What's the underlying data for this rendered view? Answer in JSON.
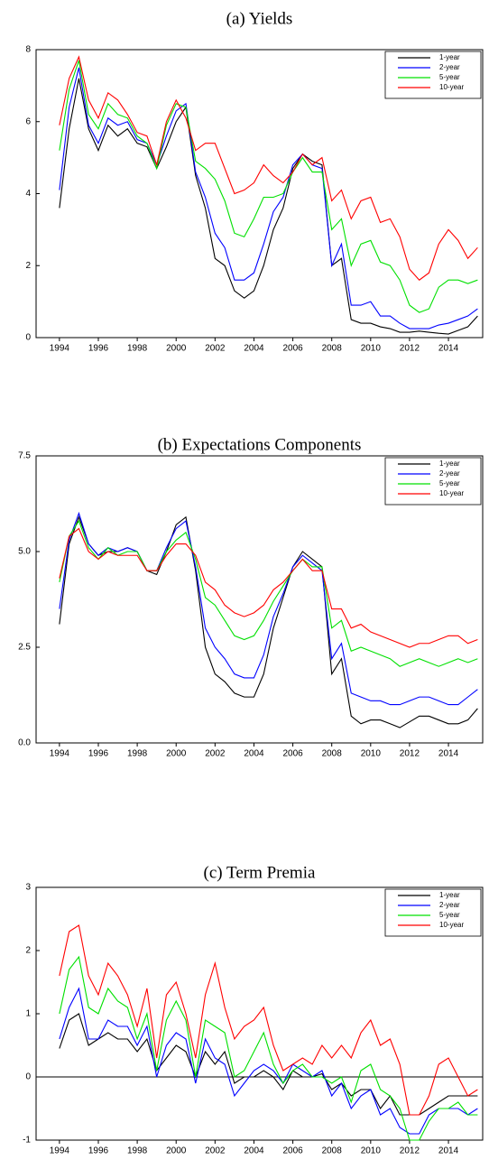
{
  "chart_data": [
    {
      "type": "line",
      "title": "(a) Yields",
      "x": [
        1994.0,
        1994.5,
        1995.0,
        1995.5,
        1996.0,
        1996.5,
        1997.0,
        1997.5,
        1998.0,
        1998.5,
        1999.0,
        1999.5,
        2000.0,
        2000.5,
        2001.0,
        2001.5,
        2002.0,
        2002.5,
        2003.0,
        2003.5,
        2004.0,
        2004.5,
        2005.0,
        2005.5,
        2006.0,
        2006.5,
        2007.0,
        2007.5,
        2008.0,
        2008.5,
        2009.0,
        2009.5,
        2010.0,
        2010.5,
        2011.0,
        2011.5,
        2012.0,
        2012.5,
        2013.0,
        2013.5,
        2014.0,
        2014.5,
        2015.0,
        2015.5
      ],
      "xlim": [
        1992.8,
        2015.76
      ],
      "xticks": [
        1994,
        1996,
        1998,
        2000,
        2002,
        2004,
        2006,
        2008,
        2010,
        2012,
        2014
      ],
      "ylim": [
        0,
        8
      ],
      "yticks": [
        0,
        2,
        4,
        6,
        8
      ],
      "legend": "upper right",
      "series": [
        {
          "name": "1-year",
          "color": "#000000",
          "values": [
            3.6,
            5.8,
            7.2,
            5.8,
            5.2,
            5.9,
            5.6,
            5.8,
            5.4,
            5.3,
            4.7,
            5.3,
            6.0,
            6.4,
            4.5,
            3.6,
            2.2,
            2.0,
            1.3,
            1.1,
            1.3,
            2.0,
            3.0,
            3.6,
            4.7,
            5.1,
            4.9,
            4.8,
            2.0,
            2.2,
            0.5,
            0.4,
            0.4,
            0.3,
            0.25,
            0.15,
            0.15,
            0.18,
            0.15,
            0.12,
            0.1,
            0.2,
            0.3,
            0.6
          ]
        },
        {
          "name": "2-year",
          "color": "#0000ff",
          "values": [
            4.1,
            6.4,
            7.5,
            5.9,
            5.4,
            6.1,
            5.9,
            6.0,
            5.5,
            5.4,
            4.8,
            5.6,
            6.3,
            6.5,
            4.6,
            3.9,
            2.9,
            2.5,
            1.6,
            1.6,
            1.8,
            2.6,
            3.5,
            3.9,
            4.8,
            5.1,
            4.8,
            4.7,
            2.0,
            2.6,
            0.9,
            0.9,
            1.0,
            0.6,
            0.6,
            0.4,
            0.25,
            0.25,
            0.25,
            0.35,
            0.4,
            0.5,
            0.6,
            0.8
          ]
        },
        {
          "name": "5-year",
          "color": "#00e000",
          "values": [
            5.2,
            6.9,
            7.7,
            6.2,
            5.8,
            6.5,
            6.2,
            6.1,
            5.6,
            5.4,
            4.7,
            5.9,
            6.5,
            6.4,
            4.9,
            4.7,
            4.4,
            3.8,
            2.9,
            2.8,
            3.3,
            3.9,
            3.9,
            4.0,
            4.6,
            5.0,
            4.6,
            4.6,
            3.0,
            3.3,
            2.0,
            2.6,
            2.7,
            2.1,
            2.0,
            1.6,
            0.9,
            0.7,
            0.8,
            1.4,
            1.6,
            1.6,
            1.5,
            1.6
          ]
        },
        {
          "name": "10-year",
          "color": "#ff0000",
          "values": [
            5.9,
            7.2,
            7.8,
            6.6,
            6.1,
            6.8,
            6.6,
            6.2,
            5.7,
            5.6,
            4.8,
            6.0,
            6.6,
            6.1,
            5.2,
            5.4,
            5.4,
            4.7,
            4.0,
            4.1,
            4.3,
            4.8,
            4.5,
            4.3,
            4.6,
            5.1,
            4.8,
            5.0,
            3.8,
            4.1,
            3.3,
            3.8,
            3.9,
            3.2,
            3.3,
            2.8,
            1.9,
            1.6,
            1.8,
            2.6,
            3.0,
            2.7,
            2.2,
            2.5
          ]
        }
      ]
    },
    {
      "type": "line",
      "title": "(b) Expectations Components",
      "x": [
        1994.0,
        1994.5,
        1995.0,
        1995.5,
        1996.0,
        1996.5,
        1997.0,
        1997.5,
        1998.0,
        1998.5,
        1999.0,
        1999.5,
        2000.0,
        2000.5,
        2001.0,
        2001.5,
        2002.0,
        2002.5,
        2003.0,
        2003.5,
        2004.0,
        2004.5,
        2005.0,
        2005.5,
        2006.0,
        2006.5,
        2007.0,
        2007.5,
        2008.0,
        2008.5,
        2009.0,
        2009.5,
        2010.0,
        2010.5,
        2011.0,
        2011.5,
        2012.0,
        2012.5,
        2013.0,
        2013.5,
        2014.0,
        2014.5,
        2015.0,
        2015.5
      ],
      "xlim": [
        1992.8,
        2015.76
      ],
      "xticks": [
        1994,
        1996,
        1998,
        2000,
        2002,
        2004,
        2006,
        2008,
        2010,
        2012,
        2014
      ],
      "ylim": [
        0,
        7.5
      ],
      "yticks": [
        {
          "value": 0,
          "label": "0.0"
        },
        2.5,
        {
          "value": 5,
          "label": "5.0"
        },
        7.5
      ],
      "legend": "upper right",
      "series": [
        {
          "name": "1-year",
          "color": "#000000",
          "values": [
            3.1,
            5.2,
            5.9,
            5.2,
            4.9,
            5.0,
            5.0,
            5.1,
            5.0,
            4.5,
            4.4,
            5.0,
            5.7,
            5.9,
            4.5,
            2.5,
            1.8,
            1.6,
            1.3,
            1.2,
            1.2,
            1.8,
            3.0,
            3.8,
            4.6,
            5.0,
            4.8,
            4.6,
            1.8,
            2.2,
            0.7,
            0.5,
            0.6,
            0.6,
            0.5,
            0.4,
            0.55,
            0.7,
            0.7,
            0.6,
            0.5,
            0.5,
            0.6,
            0.9
          ]
        },
        {
          "name": "2-year",
          "color": "#0000ff",
          "values": [
            3.5,
            5.3,
            6.0,
            5.2,
            4.9,
            5.1,
            5.0,
            5.1,
            5.0,
            4.5,
            4.5,
            5.1,
            5.6,
            5.8,
            4.6,
            3.0,
            2.5,
            2.2,
            1.8,
            1.7,
            1.7,
            2.3,
            3.3,
            3.9,
            4.6,
            4.9,
            4.7,
            4.5,
            2.2,
            2.6,
            1.3,
            1.2,
            1.1,
            1.1,
            1.0,
            1.0,
            1.1,
            1.2,
            1.2,
            1.1,
            1.0,
            1.0,
            1.2,
            1.4
          ]
        },
        {
          "name": "5-year",
          "color": "#00e000",
          "values": [
            4.2,
            5.4,
            5.8,
            5.1,
            4.8,
            5.1,
            4.9,
            5.0,
            5.0,
            4.5,
            4.5,
            5.0,
            5.3,
            5.5,
            4.8,
            3.8,
            3.6,
            3.2,
            2.8,
            2.7,
            2.8,
            3.2,
            3.7,
            4.1,
            4.5,
            4.8,
            4.6,
            4.6,
            3.0,
            3.2,
            2.4,
            2.5,
            2.4,
            2.3,
            2.2,
            2.0,
            2.1,
            2.2,
            2.1,
            2.0,
            2.1,
            2.2,
            2.1,
            2.2
          ]
        },
        {
          "name": "10-year",
          "color": "#ff0000",
          "values": [
            4.3,
            5.4,
            5.6,
            5.0,
            4.8,
            5.0,
            4.9,
            4.9,
            4.9,
            4.5,
            4.5,
            4.9,
            5.2,
            5.2,
            4.9,
            4.2,
            4.0,
            3.6,
            3.4,
            3.3,
            3.4,
            3.6,
            4.0,
            4.2,
            4.5,
            4.8,
            4.5,
            4.5,
            3.5,
            3.5,
            3.0,
            3.1,
            2.9,
            2.8,
            2.7,
            2.6,
            2.5,
            2.6,
            2.6,
            2.7,
            2.8,
            2.8,
            2.6,
            2.7
          ]
        }
      ]
    },
    {
      "type": "line",
      "title": "(c) Term Premia",
      "x": [
        1994.0,
        1994.5,
        1995.0,
        1995.5,
        1996.0,
        1996.5,
        1997.0,
        1997.5,
        1998.0,
        1998.5,
        1999.0,
        1999.5,
        2000.0,
        2000.5,
        2001.0,
        2001.5,
        2002.0,
        2002.5,
        2003.0,
        2003.5,
        2004.0,
        2004.5,
        2005.0,
        2005.5,
        2006.0,
        2006.5,
        2007.0,
        2007.5,
        2008.0,
        2008.5,
        2009.0,
        2009.5,
        2010.0,
        2010.5,
        2011.0,
        2011.5,
        2012.0,
        2012.5,
        2013.0,
        2013.5,
        2014.0,
        2014.5,
        2015.0,
        2015.5
      ],
      "xlim": [
        1992.8,
        2015.76
      ],
      "xticks": [
        1994,
        1996,
        1998,
        2000,
        2002,
        2004,
        2006,
        2008,
        2010,
        2012,
        2014
      ],
      "ylim": [
        -1,
        3
      ],
      "yticks": [
        -1,
        0,
        1,
        2,
        3
      ],
      "legend": "upper right",
      "zero_line": true,
      "series": [
        {
          "name": "1-year",
          "color": "#000000",
          "values": [
            0.45,
            0.9,
            1.0,
            0.5,
            0.6,
            0.7,
            0.6,
            0.6,
            0.4,
            0.6,
            0.1,
            0.3,
            0.5,
            0.4,
            0.0,
            0.4,
            0.2,
            0.4,
            -0.1,
            0.0,
            0.0,
            0.1,
            0.0,
            -0.2,
            0.1,
            0.0,
            0.0,
            0.05,
            -0.2,
            -0.1,
            -0.3,
            -0.2,
            -0.2,
            -0.5,
            -0.3,
            -0.6,
            -0.6,
            -0.6,
            -0.5,
            -0.4,
            -0.3,
            -0.3,
            -0.3,
            -0.3
          ]
        },
        {
          "name": "2-year",
          "color": "#0000ff",
          "values": [
            0.6,
            1.1,
            1.4,
            0.6,
            0.6,
            0.9,
            0.8,
            0.8,
            0.5,
            0.8,
            0.0,
            0.5,
            0.7,
            0.6,
            -0.1,
            0.6,
            0.3,
            0.2,
            -0.3,
            -0.1,
            0.1,
            0.2,
            0.1,
            -0.1,
            0.2,
            0.1,
            0.0,
            0.1,
            -0.3,
            -0.1,
            -0.5,
            -0.3,
            -0.2,
            -0.6,
            -0.5,
            -0.8,
            -0.9,
            -0.9,
            -0.6,
            -0.5,
            -0.5,
            -0.5,
            -0.6,
            -0.5
          ]
        },
        {
          "name": "5-year",
          "color": "#00e000",
          "values": [
            1.0,
            1.7,
            1.9,
            1.1,
            1.0,
            1.4,
            1.2,
            1.1,
            0.6,
            1.0,
            0.1,
            0.9,
            1.2,
            0.9,
            0.0,
            0.9,
            0.8,
            0.7,
            0.0,
            0.1,
            0.4,
            0.7,
            0.2,
            -0.1,
            0.1,
            0.2,
            0.0,
            0.0,
            -0.1,
            0.0,
            -0.4,
            0.1,
            0.2,
            -0.2,
            -0.3,
            -0.5,
            -1.0,
            -1.0,
            -0.7,
            -0.5,
            -0.5,
            -0.4,
            -0.6,
            -0.6
          ]
        },
        {
          "name": "10-year",
          "color": "#ff0000",
          "values": [
            1.6,
            2.3,
            2.4,
            1.6,
            1.3,
            1.8,
            1.6,
            1.3,
            0.8,
            1.4,
            0.3,
            1.3,
            1.5,
            1.0,
            0.3,
            1.3,
            1.8,
            1.1,
            0.6,
            0.8,
            0.9,
            1.1,
            0.5,
            0.1,
            0.2,
            0.3,
            0.2,
            0.5,
            0.3,
            0.5,
            0.3,
            0.7,
            0.9,
            0.5,
            0.6,
            0.2,
            -0.6,
            -0.6,
            -0.3,
            0.2,
            0.3,
            0.0,
            -0.3,
            -0.2
          ]
        }
      ]
    }
  ]
}
